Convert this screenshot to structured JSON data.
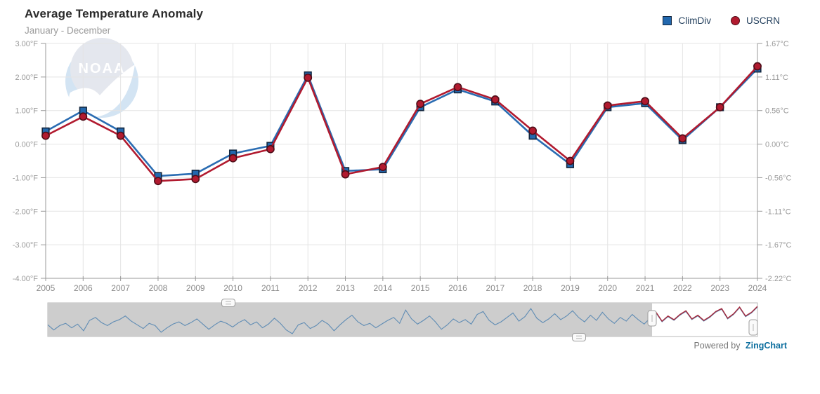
{
  "header": {
    "title": "Average Temperature Anomaly",
    "subtitle": "January - December"
  },
  "legend": {
    "items": [
      {
        "label": "ClimDiv",
        "marker": "square",
        "color": "#2268ae",
        "border": "#13273f"
      },
      {
        "label": "USCRN",
        "marker": "circle",
        "color": "#b11a2f",
        "border": "#4f0d18"
      }
    ]
  },
  "watermark": {
    "text": "NOAA"
  },
  "footer": {
    "powered_by": "Powered by",
    "brand": "ZingChart"
  },
  "colors": {
    "climdiv_line": "#2a6cb2",
    "climdiv_fill": "#2268ae",
    "climdiv_border": "#13273f",
    "uscrn_line": "#b11a2f",
    "uscrn_fill": "#b11a2f",
    "uscrn_border": "#4f0d18",
    "gridline": "#e4e4e4",
    "axis": "#9a9a9a",
    "tick_label": "#999999",
    "year_label": "#8a8a8a",
    "preview_mask": "#cdcdcd",
    "preview_border": "#b8b8b8",
    "preview_line_blue": "#5f8cb4",
    "preview_line_red": "#a62639",
    "watermark_circle": "#d3e4f3",
    "watermark_cap": "#e4e7ee"
  },
  "chart_data": {
    "type": "line",
    "title": "Average Temperature Anomaly",
    "subtitle": "January - December",
    "x": [
      2005,
      2006,
      2007,
      2008,
      2009,
      2010,
      2011,
      2012,
      2013,
      2014,
      2015,
      2016,
      2017,
      2018,
      2019,
      2020,
      2021,
      2022,
      2023,
      2024
    ],
    "series": [
      {
        "name": "ClimDiv",
        "marker": "square",
        "values_f": [
          0.38,
          1.0,
          0.38,
          -0.95,
          -0.88,
          -0.28,
          -0.05,
          2.05,
          -0.8,
          -0.75,
          1.1,
          1.63,
          1.27,
          0.25,
          -0.6,
          1.1,
          1.22,
          0.12,
          1.1,
          2.25
        ]
      },
      {
        "name": "USCRN",
        "marker": "circle",
        "values_f": [
          0.25,
          0.82,
          0.25,
          -1.1,
          -1.04,
          -0.42,
          -0.15,
          1.98,
          -0.9,
          -0.68,
          1.2,
          1.7,
          1.33,
          0.4,
          -0.5,
          1.15,
          1.28,
          0.17,
          1.1,
          2.32
        ]
      }
    ],
    "ylim_f": [
      -4,
      3
    ],
    "y_ticks_f": [
      "3.00°F",
      "2.00°F",
      "1.00°F",
      "0.00°F",
      "-1.00°F",
      "-2.00°F",
      "-3.00°F",
      "-4.00°F"
    ],
    "y_ticks_c": [
      "1.67°C",
      "1.11°C",
      "0.56°C",
      "0.00°C",
      "-0.56°C",
      "-1.11°C",
      "-1.67°C",
      "-2.22°C"
    ],
    "grid": true,
    "legend_position": "top-right",
    "preview": {
      "active_from_frac": 0.8515,
      "values": [
        0.2,
        -0.5,
        0.1,
        0.4,
        -0.2,
        0.3,
        -0.6,
        0.8,
        1.2,
        0.5,
        0.1,
        0.6,
        0.9,
        1.4,
        0.7,
        0.2,
        -0.3,
        0.4,
        0.1,
        -0.8,
        -0.2,
        0.3,
        0.6,
        0.1,
        0.5,
        1.0,
        0.3,
        -0.4,
        0.2,
        0.7,
        0.4,
        -0.1,
        0.5,
        0.9,
        0.2,
        0.6,
        -0.2,
        0.3,
        1.1,
        0.4,
        -0.5,
        -1.0,
        0.2,
        0.5,
        -0.3,
        0.1,
        0.8,
        0.3,
        -0.6,
        0.2,
        0.9,
        1.5,
        0.6,
        0.1,
        0.4,
        -0.2,
        0.3,
        0.8,
        1.2,
        0.4,
        2.2,
        1.0,
        0.3,
        0.8,
        1.4,
        0.6,
        -0.4,
        0.2,
        1.0,
        0.5,
        0.9,
        0.3,
        1.6,
        2.0,
        0.8,
        0.2,
        0.6,
        1.2,
        1.8,
        0.7,
        1.3,
        2.4,
        1.1,
        0.5,
        1.0,
        1.7,
        0.9,
        1.4,
        2.1,
        1.2,
        0.6,
        1.5,
        0.8,
        1.9,
        1.0,
        0.4,
        1.2,
        0.7,
        1.6,
        0.9,
        0.3,
        1.1,
        1.8,
        0.6,
        1.3,
        0.8,
        1.5,
        2.0,
        0.9,
        1.4,
        0.7,
        1.2,
        1.9,
        2.3,
        1.0,
        1.6,
        2.5,
        1.3,
        1.8,
        2.6
      ]
    }
  }
}
